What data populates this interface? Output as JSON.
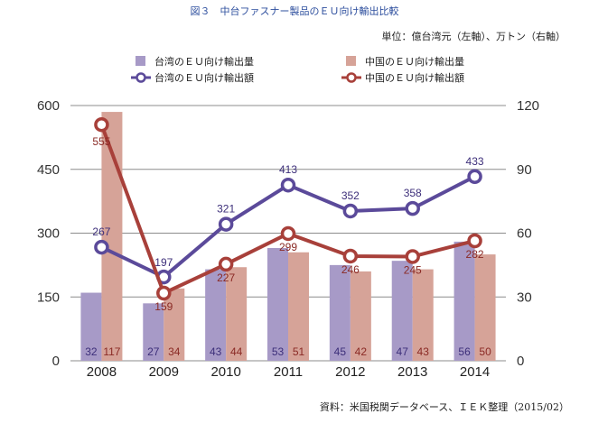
{
  "title": "図３　中台ファスナー製品のＥＵ向け輸出比較",
  "unit_note": "単位：億台湾元（左軸）、万トン（右軸）",
  "source_note": "資料：米国税関データベース、ＩＥＫ整理（2015/02）",
  "chart_data": {
    "type": "bar",
    "categories": [
      "2008",
      "2009",
      "2010",
      "2011",
      "2012",
      "2013",
      "2014"
    ],
    "series": [
      {
        "name": "台湾のＥＵ向け輸出量",
        "kind": "bar",
        "axis": "right",
        "color": "#a79ac7",
        "values": [
          32,
          27,
          43,
          53,
          45,
          47,
          56
        ]
      },
      {
        "name": "中国のＥＵ向け輸出量",
        "kind": "bar",
        "axis": "right",
        "color": "#d6a398",
        "values": [
          117,
          34,
          44,
          51,
          42,
          43,
          50
        ]
      },
      {
        "name": "台湾のＥＵ向け輸出額",
        "kind": "line",
        "axis": "left",
        "color": "#5b4a9a",
        "values": [
          267,
          197,
          321,
          413,
          352,
          358,
          433
        ]
      },
      {
        "name": "中国のＥＵ向け輸出額",
        "kind": "line",
        "axis": "left",
        "color": "#a8403a",
        "values": [
          555,
          159,
          227,
          299,
          246,
          245,
          282
        ]
      }
    ],
    "y_left": {
      "ylim": [
        0,
        600
      ],
      "ticks": [
        "0",
        "150",
        "300",
        "450",
        "600"
      ]
    },
    "y_right": {
      "ylim": [
        0,
        120
      ],
      "ticks": [
        "0",
        "30",
        "60",
        "90",
        "120"
      ]
    },
    "grid": true,
    "legend_position": "top"
  }
}
